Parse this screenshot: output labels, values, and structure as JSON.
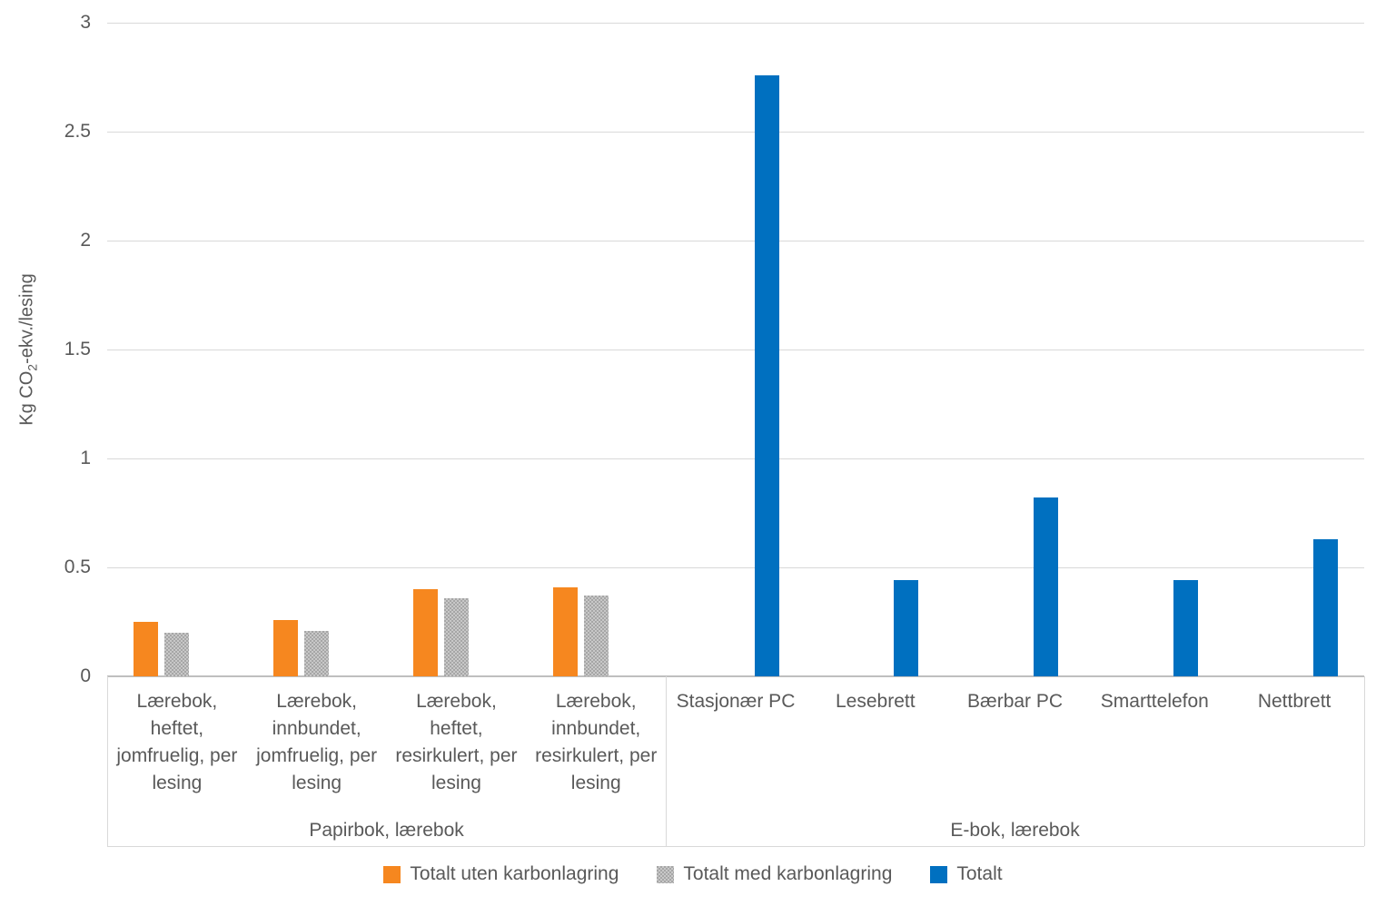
{
  "chart_data": {
    "type": "bar",
    "title": "",
    "ylabel": "Kg CO2-ekv./lesing",
    "ylabel_parts": {
      "pre": "Kg CO",
      "sub": "2",
      "post": "-ekv./lesing"
    },
    "ylim": [
      0,
      3
    ],
    "ytick_step": 0.5,
    "grid": true,
    "legend_position": "bottom",
    "yticks": [
      {
        "value": 0,
        "label": "0"
      },
      {
        "value": 0.5,
        "label": "0.5"
      },
      {
        "value": 1,
        "label": "1"
      },
      {
        "value": 1.5,
        "label": "1.5"
      },
      {
        "value": 2,
        "label": "2"
      },
      {
        "value": 2.5,
        "label": "2.5"
      },
      {
        "value": 3,
        "label": "3"
      }
    ],
    "groups": [
      {
        "label": "Papirbok, lærebok",
        "categories": [
          "Lærebok,\nheftet,\njomfruelig, per\nlesing",
          "Lærebok,\ninnbundet,\njomfruelig, per\nlesing",
          "Lærebok,\nheftet,\nresirkulert, per\nlesing",
          "Lærebok,\ninnbundet,\nresirkulert, per\nlesing"
        ]
      },
      {
        "label": "E-bok, lærebok",
        "categories": [
          "Stasjonær PC",
          "Lesebrett",
          "Bærbar PC",
          "Smarttelefon",
          "Nettbrett"
        ]
      }
    ],
    "series": [
      {
        "name": "Totalt uten karbonlagring",
        "color": "#F6871F",
        "pattern": false,
        "values": [
          0.25,
          0.26,
          0.4,
          0.41,
          null,
          null,
          null,
          null,
          null
        ]
      },
      {
        "name": "Totalt med karbonlagring",
        "color": "#A6A6A6",
        "pattern": true,
        "values": [
          0.2,
          0.21,
          0.36,
          0.37,
          null,
          null,
          null,
          null,
          null
        ]
      },
      {
        "name": "Totalt",
        "color": "#0070C0",
        "pattern": false,
        "values": [
          null,
          null,
          null,
          null,
          2.76,
          0.44,
          0.82,
          0.44,
          0.63
        ]
      }
    ],
    "colors": {
      "gridline": "#D9D9D9",
      "axis_line": "#BFBFBF",
      "text": "#595959"
    }
  }
}
